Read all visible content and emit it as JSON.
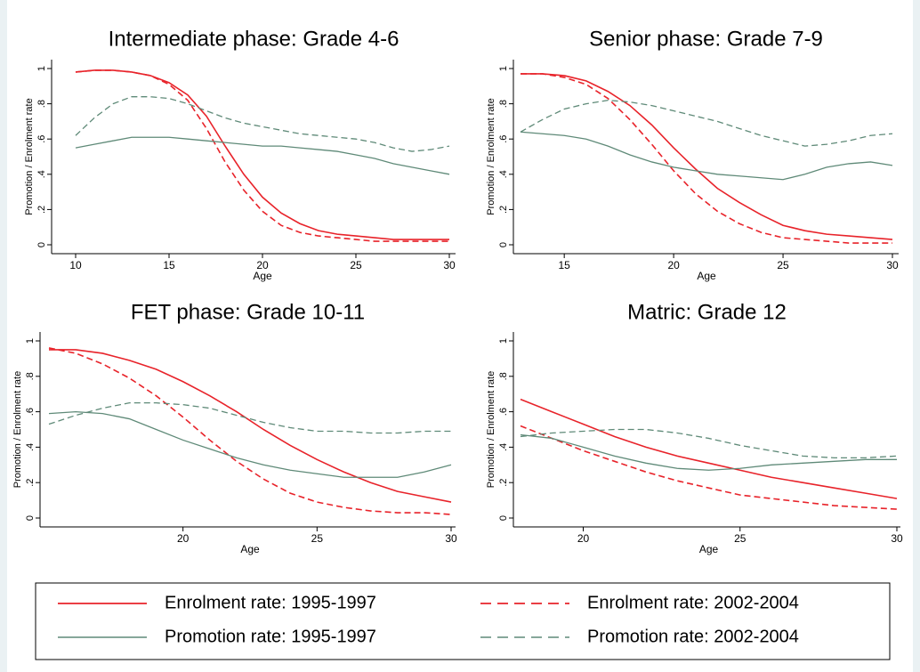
{
  "chart_data": [
    {
      "type": "line",
      "title": "Intermediate phase: Grade 4-6",
      "x_label": "Age",
      "y_label": "Promotion / Enrolment rate",
      "x": [
        10,
        11,
        12,
        13,
        14,
        15,
        16,
        17,
        18,
        19,
        20,
        21,
        22,
        23,
        24,
        25,
        26,
        27,
        28,
        29,
        30
      ],
      "xlim": [
        10,
        30
      ],
      "xticks": [
        10,
        15,
        20,
        25,
        30
      ],
      "ylim": [
        0,
        1
      ],
      "yticks": [
        0,
        {
          "value": 0.2,
          "label": ".2"
        },
        {
          "value": 0.4,
          "label": ".4"
        },
        {
          "value": 0.6,
          "label": ".6"
        },
        {
          "value": 0.8,
          "label": ".8"
        },
        1
      ],
      "series": [
        {
          "name": "Enrolment rate: 1995-1997",
          "color": "#e8232a",
          "dashed": false,
          "values": [
            0.98,
            0.99,
            0.99,
            0.98,
            0.96,
            0.92,
            0.85,
            0.73,
            0.56,
            0.4,
            0.27,
            0.18,
            0.12,
            0.08,
            0.06,
            0.05,
            0.04,
            0.03,
            0.03,
            0.03,
            0.03
          ]
        },
        {
          "name": "Enrolment rate: 2002-2004",
          "color": "#e8232a",
          "dashed": true,
          "values": [
            0.98,
            0.99,
            0.99,
            0.98,
            0.96,
            0.91,
            0.82,
            0.66,
            0.47,
            0.31,
            0.19,
            0.11,
            0.07,
            0.05,
            0.04,
            0.03,
            0.02,
            0.02,
            0.02,
            0.02,
            0.02
          ]
        },
        {
          "name": "Promotion rate: 1995-1997",
          "color": "#5f8a78",
          "dashed": false,
          "values": [
            0.55,
            0.57,
            0.59,
            0.61,
            0.61,
            0.61,
            0.6,
            0.59,
            0.58,
            0.57,
            0.56,
            0.56,
            0.55,
            0.54,
            0.53,
            0.51,
            0.49,
            0.46,
            0.44,
            0.42,
            0.4
          ]
        },
        {
          "name": "Promotion rate: 2002-2004",
          "color": "#5f8a78",
          "dashed": true,
          "values": [
            0.62,
            0.72,
            0.8,
            0.84,
            0.84,
            0.83,
            0.8,
            0.76,
            0.72,
            0.69,
            0.67,
            0.65,
            0.63,
            0.62,
            0.61,
            0.6,
            0.58,
            0.55,
            0.53,
            0.54,
            0.56
          ]
        }
      ]
    },
    {
      "type": "line",
      "title": "Senior phase: Grade 7-9",
      "x_label": "Age",
      "y_label": "Promotion / Enrolment rate",
      "x": [
        13,
        14,
        15,
        16,
        17,
        18,
        19,
        20,
        21,
        22,
        23,
        24,
        25,
        26,
        27,
        28,
        29,
        30
      ],
      "xlim": [
        13,
        30
      ],
      "xticks": [
        15,
        20,
        25,
        30
      ],
      "ylim": [
        0,
        1
      ],
      "yticks": [
        0,
        {
          "value": 0.2,
          "label": ".2"
        },
        {
          "value": 0.4,
          "label": ".4"
        },
        {
          "value": 0.6,
          "label": ".6"
        },
        {
          "value": 0.8,
          "label": ".8"
        },
        1
      ],
      "series": [
        {
          "color": "#e8232a",
          "dashed": false,
          "values": [
            0.97,
            0.97,
            0.96,
            0.93,
            0.87,
            0.79,
            0.68,
            0.55,
            0.43,
            0.32,
            0.24,
            0.17,
            0.11,
            0.08,
            0.06,
            0.05,
            0.04,
            0.03
          ]
        },
        {
          "color": "#e8232a",
          "dashed": true,
          "values": [
            0.97,
            0.97,
            0.95,
            0.91,
            0.83,
            0.71,
            0.57,
            0.42,
            0.29,
            0.19,
            0.12,
            0.07,
            0.04,
            0.03,
            0.02,
            0.01,
            0.01,
            0.01
          ]
        },
        {
          "color": "#5f8a78",
          "dashed": false,
          "values": [
            0.64,
            0.63,
            0.62,
            0.6,
            0.56,
            0.51,
            0.47,
            0.44,
            0.42,
            0.4,
            0.39,
            0.38,
            0.37,
            0.4,
            0.44,
            0.46,
            0.47,
            0.45
          ]
        },
        {
          "color": "#5f8a78",
          "dashed": true,
          "values": [
            0.64,
            0.71,
            0.77,
            0.8,
            0.82,
            0.81,
            0.79,
            0.76,
            0.73,
            0.7,
            0.66,
            0.62,
            0.59,
            0.56,
            0.57,
            0.59,
            0.62,
            0.63
          ]
        }
      ]
    },
    {
      "type": "line",
      "title": "FET phase: Grade 10-11",
      "x_label": "Age",
      "y_label": "Promotion / Enrolment rate",
      "x": [
        15,
        16,
        17,
        18,
        19,
        20,
        21,
        22,
        23,
        24,
        25,
        26,
        27,
        28,
        29,
        30
      ],
      "xlim": [
        15,
        30
      ],
      "xticks": [
        20,
        25,
        30
      ],
      "ylim": [
        0,
        1
      ],
      "yticks": [
        0,
        {
          "value": 0.2,
          "label": ".2"
        },
        {
          "value": 0.4,
          "label": ".4"
        },
        {
          "value": 0.6,
          "label": ".6"
        },
        {
          "value": 0.8,
          "label": ".8"
        },
        1
      ],
      "series": [
        {
          "color": "#e8232a",
          "dashed": false,
          "values": [
            0.95,
            0.95,
            0.93,
            0.89,
            0.84,
            0.77,
            0.69,
            0.6,
            0.5,
            0.41,
            0.33,
            0.26,
            0.2,
            0.15,
            0.12,
            0.09
          ]
        },
        {
          "color": "#e8232a",
          "dashed": true,
          "values": [
            0.96,
            0.93,
            0.87,
            0.79,
            0.69,
            0.57,
            0.44,
            0.32,
            0.22,
            0.14,
            0.09,
            0.06,
            0.04,
            0.03,
            0.03,
            0.02
          ]
        },
        {
          "color": "#5f8a78",
          "dashed": false,
          "values": [
            0.59,
            0.6,
            0.59,
            0.56,
            0.5,
            0.44,
            0.39,
            0.34,
            0.3,
            0.27,
            0.25,
            0.23,
            0.23,
            0.23,
            0.26,
            0.3
          ]
        },
        {
          "color": "#5f8a78",
          "dashed": true,
          "values": [
            0.53,
            0.58,
            0.62,
            0.65,
            0.65,
            0.64,
            0.62,
            0.58,
            0.54,
            0.51,
            0.49,
            0.49,
            0.48,
            0.48,
            0.49,
            0.49
          ]
        }
      ]
    },
    {
      "type": "line",
      "title": "Matric: Grade 12",
      "x_label": "Age",
      "y_label": "Promotion / Enrolment rate",
      "x": [
        18,
        19,
        20,
        21,
        22,
        23,
        24,
        25,
        26,
        27,
        28,
        29,
        30
      ],
      "xlim": [
        18,
        30
      ],
      "xticks": [
        20,
        25,
        30
      ],
      "ylim": [
        0,
        1
      ],
      "yticks": [
        0,
        {
          "value": 0.2,
          "label": ".2"
        },
        {
          "value": 0.4,
          "label": ".4"
        },
        {
          "value": 0.6,
          "label": ".6"
        },
        {
          "value": 0.8,
          "label": ".8"
        },
        1
      ],
      "series": [
        {
          "color": "#e8232a",
          "dashed": false,
          "values": [
            0.67,
            0.6,
            0.53,
            0.46,
            0.4,
            0.35,
            0.31,
            0.27,
            0.23,
            0.2,
            0.17,
            0.14,
            0.11
          ]
        },
        {
          "color": "#e8232a",
          "dashed": true,
          "values": [
            0.52,
            0.45,
            0.38,
            0.32,
            0.26,
            0.21,
            0.17,
            0.13,
            0.11,
            0.09,
            0.07,
            0.06,
            0.05
          ]
        },
        {
          "color": "#5f8a78",
          "dashed": false,
          "values": [
            0.47,
            0.45,
            0.4,
            0.35,
            0.31,
            0.28,
            0.27,
            0.28,
            0.3,
            0.31,
            0.32,
            0.33,
            0.33
          ]
        },
        {
          "color": "#5f8a78",
          "dashed": true,
          "values": [
            0.46,
            0.48,
            0.49,
            0.5,
            0.5,
            0.48,
            0.45,
            0.41,
            0.38,
            0.35,
            0.34,
            0.34,
            0.35
          ]
        }
      ]
    }
  ]
}
